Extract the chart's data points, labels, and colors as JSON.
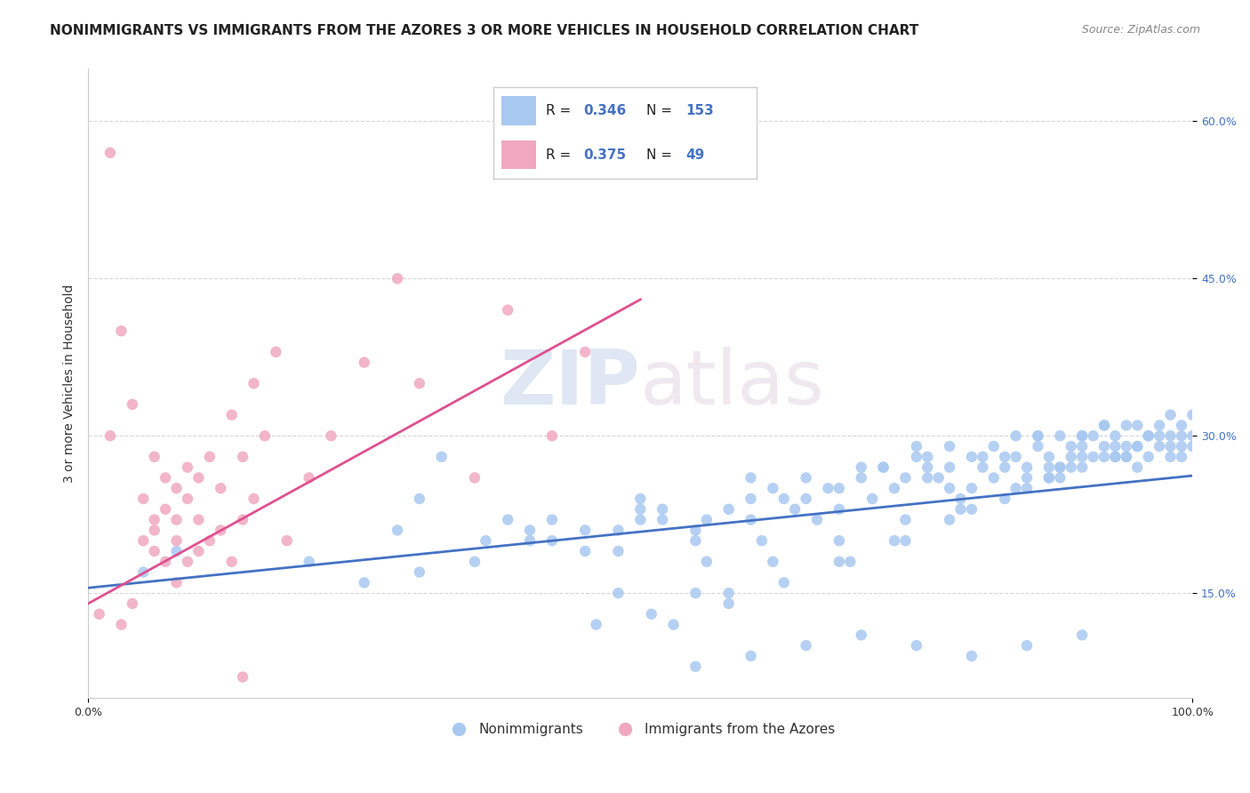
{
  "title": "NONIMMIGRANTS VS IMMIGRANTS FROM THE AZORES 3 OR MORE VEHICLES IN HOUSEHOLD CORRELATION CHART",
  "source": "Source: ZipAtlas.com",
  "xlabel_ticks": [
    "0.0%",
    "100.0%"
  ],
  "ylabel_label": "3 or more Vehicles in Household",
  "y_tick_labels": [
    "15.0%",
    "30.0%",
    "45.0%",
    "60.0%"
  ],
  "y_tick_values": [
    0.15,
    0.3,
    0.45,
    0.6
  ],
  "x_min": 0.0,
  "x_max": 1.0,
  "y_min": 0.05,
  "y_max": 0.65,
  "blue_R": 0.346,
  "blue_N": 153,
  "pink_R": 0.375,
  "pink_N": 49,
  "blue_color": "#a8c8f0",
  "pink_color": "#f0a8c0",
  "blue_line_color": "#4472c4",
  "pink_line_color": "#e05090",
  "legend_blue_label": "Nonimmigrants",
  "legend_pink_label": "Immigrants from the Azores",
  "watermark_zip": "ZIP",
  "watermark_atlas": "atlas",
  "blue_scatter_x": [
    0.05,
    0.08,
    0.32,
    0.3,
    0.28,
    0.38,
    0.42,
    0.48,
    0.5,
    0.52,
    0.55,
    0.58,
    0.6,
    0.62,
    0.63,
    0.65,
    0.67,
    0.68,
    0.7,
    0.72,
    0.73,
    0.75,
    0.76,
    0.77,
    0.78,
    0.8,
    0.8,
    0.81,
    0.82,
    0.83,
    0.84,
    0.85,
    0.85,
    0.86,
    0.87,
    0.87,
    0.88,
    0.88,
    0.89,
    0.89,
    0.9,
    0.9,
    0.91,
    0.91,
    0.92,
    0.92,
    0.93,
    0.93,
    0.94,
    0.94,
    0.95,
    0.95,
    0.95,
    0.96,
    0.96,
    0.97,
    0.97,
    0.98,
    0.98,
    0.98,
    0.99,
    0.99,
    0.99,
    1.0,
    1.0,
    1.0,
    0.4,
    0.45,
    0.5,
    0.55,
    0.6,
    0.65,
    0.7,
    0.75,
    0.36,
    0.42,
    0.48,
    0.52,
    0.56,
    0.6,
    0.64,
    0.68,
    0.72,
    0.74,
    0.76,
    0.78,
    0.82,
    0.84,
    0.86,
    0.88,
    0.9,
    0.92,
    0.94,
    0.96,
    0.98,
    0.3,
    0.35,
    0.4,
    0.45,
    0.5,
    0.55,
    0.62,
    0.68,
    0.74,
    0.8,
    0.85,
    0.9,
    0.93,
    0.2,
    0.25,
    0.66,
    0.71,
    0.76,
    0.81,
    0.86,
    0.56,
    0.61,
    0.46,
    0.51,
    0.58,
    0.69,
    0.74,
    0.79,
    0.84,
    0.89,
    0.94,
    0.99,
    0.88,
    0.93,
    0.78,
    0.83,
    0.9,
    0.95,
    0.48,
    0.53,
    0.58,
    0.63,
    0.68,
    0.73,
    0.78,
    0.83,
    0.87,
    0.92,
    0.97,
    0.79,
    0.87,
    0.55,
    0.6,
    0.65,
    0.7,
    0.75,
    0.8,
    0.85,
    0.9
  ],
  "blue_scatter_y": [
    0.17,
    0.19,
    0.28,
    0.24,
    0.21,
    0.22,
    0.2,
    0.19,
    0.24,
    0.22,
    0.21,
    0.23,
    0.22,
    0.25,
    0.24,
    0.26,
    0.25,
    0.23,
    0.26,
    0.27,
    0.25,
    0.28,
    0.27,
    0.26,
    0.29,
    0.28,
    0.25,
    0.27,
    0.26,
    0.28,
    0.3,
    0.27,
    0.26,
    0.29,
    0.28,
    0.27,
    0.3,
    0.26,
    0.29,
    0.28,
    0.27,
    0.3,
    0.28,
    0.3,
    0.29,
    0.31,
    0.28,
    0.3,
    0.29,
    0.31,
    0.27,
    0.29,
    0.31,
    0.3,
    0.28,
    0.29,
    0.31,
    0.3,
    0.28,
    0.32,
    0.29,
    0.31,
    0.28,
    0.3,
    0.32,
    0.29,
    0.21,
    0.19,
    0.22,
    0.2,
    0.26,
    0.24,
    0.27,
    0.29,
    0.2,
    0.22,
    0.21,
    0.23,
    0.22,
    0.24,
    0.23,
    0.25,
    0.27,
    0.26,
    0.28,
    0.27,
    0.29,
    0.28,
    0.3,
    0.27,
    0.29,
    0.31,
    0.28,
    0.3,
    0.29,
    0.17,
    0.18,
    0.2,
    0.21,
    0.23,
    0.15,
    0.18,
    0.2,
    0.22,
    0.23,
    0.25,
    0.28,
    0.28,
    0.18,
    0.16,
    0.22,
    0.24,
    0.26,
    0.28,
    0.3,
    0.18,
    0.2,
    0.12,
    0.13,
    0.15,
    0.18,
    0.2,
    0.23,
    0.25,
    0.27,
    0.28,
    0.3,
    0.27,
    0.29,
    0.25,
    0.27,
    0.3,
    0.29,
    0.15,
    0.12,
    0.14,
    0.16,
    0.18,
    0.2,
    0.22,
    0.24,
    0.26,
    0.28,
    0.3,
    0.24,
    0.26,
    0.08,
    0.09,
    0.1,
    0.11,
    0.1,
    0.09,
    0.1,
    0.11
  ],
  "pink_scatter_x": [
    0.01,
    0.02,
    0.02,
    0.03,
    0.03,
    0.04,
    0.04,
    0.05,
    0.05,
    0.06,
    0.06,
    0.06,
    0.06,
    0.07,
    0.07,
    0.07,
    0.08,
    0.08,
    0.08,
    0.08,
    0.09,
    0.09,
    0.09,
    0.1,
    0.1,
    0.1,
    0.11,
    0.11,
    0.12,
    0.12,
    0.13,
    0.13,
    0.14,
    0.14,
    0.15,
    0.15,
    0.16,
    0.17,
    0.18,
    0.2,
    0.22,
    0.25,
    0.28,
    0.3,
    0.35,
    0.38,
    0.42,
    0.45,
    0.14
  ],
  "pink_scatter_y": [
    0.13,
    0.57,
    0.3,
    0.4,
    0.12,
    0.33,
    0.14,
    0.24,
    0.2,
    0.22,
    0.28,
    0.21,
    0.19,
    0.26,
    0.23,
    0.18,
    0.25,
    0.22,
    0.2,
    0.16,
    0.27,
    0.24,
    0.18,
    0.26,
    0.22,
    0.19,
    0.28,
    0.2,
    0.25,
    0.21,
    0.32,
    0.18,
    0.28,
    0.22,
    0.35,
    0.24,
    0.3,
    0.38,
    0.2,
    0.26,
    0.3,
    0.37,
    0.45,
    0.35,
    0.26,
    0.42,
    0.3,
    0.38,
    0.07
  ],
  "blue_line_x0": 0.0,
  "blue_line_y0": 0.155,
  "blue_line_x1": 1.0,
  "blue_line_y1": 0.262,
  "pink_line_x0": 0.0,
  "pink_line_y0": 0.14,
  "pink_line_x1": 0.5,
  "pink_line_y1": 0.43,
  "grid_color": "#cccccc",
  "background_color": "#ffffff",
  "title_fontsize": 11,
  "axis_label_fontsize": 10,
  "tick_fontsize": 9,
  "legend_fontsize": 11
}
